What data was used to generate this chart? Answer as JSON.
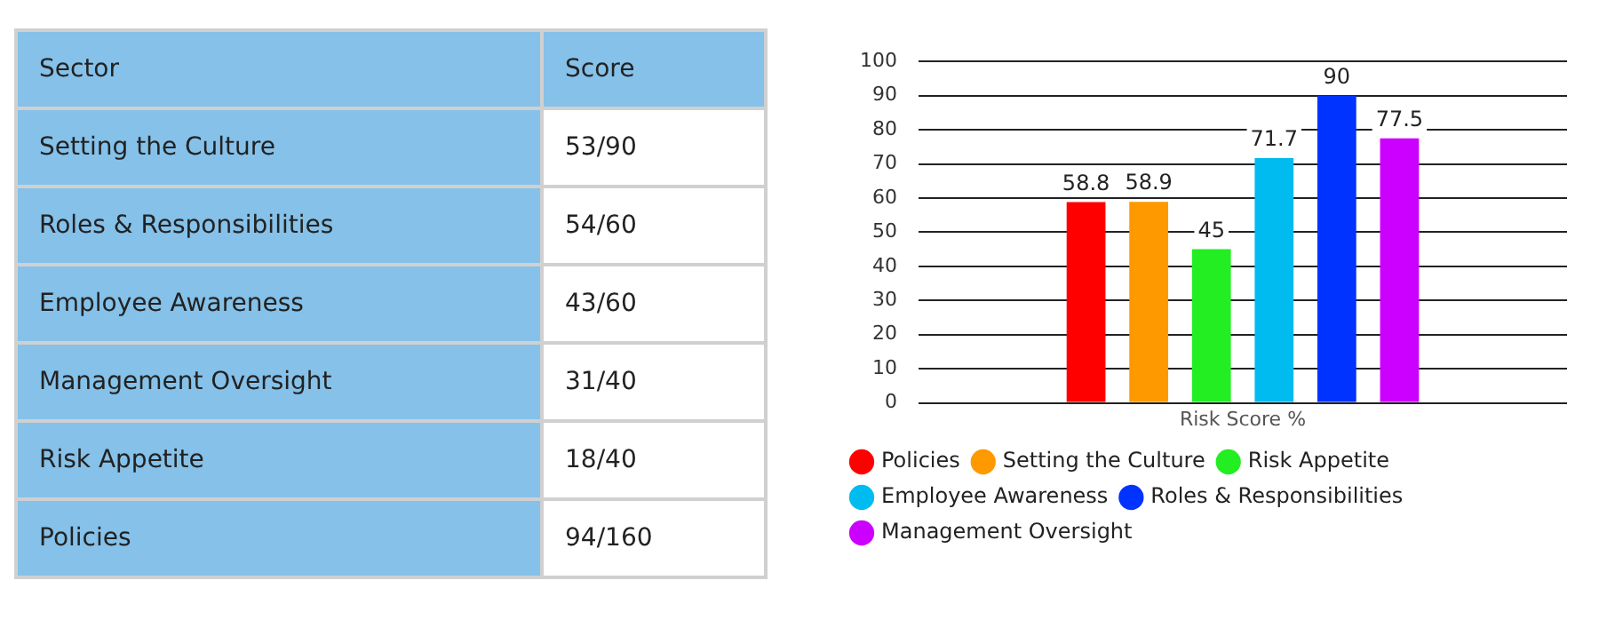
{
  "chart_data": [
    {
      "type": "other",
      "annotations": [
        "Sector",
        "Score",
        "Setting the Culture",
        "53/90",
        "Roles & Responsibilities",
        "54/60",
        "Employee Awareness",
        "43/60",
        "Management Oversight",
        "31/40",
        "Risk Appetite",
        "18/40",
        "Policies",
        "94/160"
      ]
    },
    {
      "type": "bar",
      "categories": [
        "Risk Score %"
      ],
      "ylim": [
        0,
        100
      ],
      "yticks": [
        0,
        10,
        20,
        30,
        40,
        50,
        60,
        70,
        80,
        90,
        100
      ],
      "grid": "y",
      "legend": "bottom",
      "data_labels": true,
      "series": [
        {
          "name": "Policies",
          "color": "#ff0000",
          "values": [
            58.8
          ]
        },
        {
          "name": "Setting the Culture",
          "color": "#ff9900",
          "values": [
            58.9
          ]
        },
        {
          "name": "Risk Appetite",
          "color": "#22ee22",
          "values": [
            45
          ]
        },
        {
          "name": "Employee Awareness",
          "color": "#00bbf0",
          "values": [
            71.7
          ]
        },
        {
          "name": "Roles & Responsibilities",
          "color": "#0033ff",
          "values": [
            90
          ]
        },
        {
          "name": "Management Oversight",
          "color": "#cc00ff",
          "values": [
            77.5
          ]
        }
      ]
    }
  ]
}
